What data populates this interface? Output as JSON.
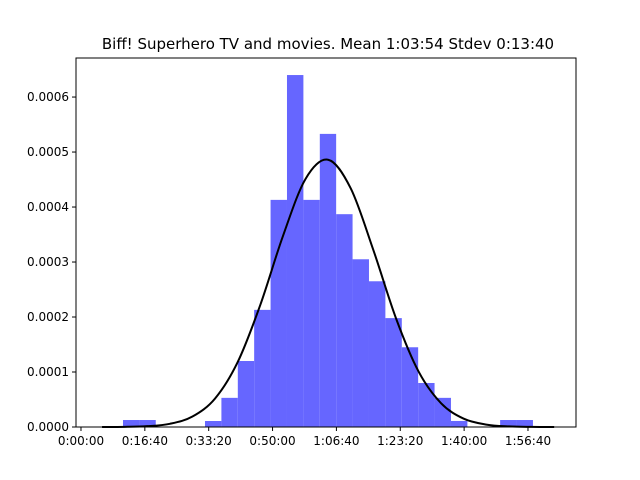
{
  "chart_data": {
    "type": "histogram",
    "title": "Biff! Superhero TV and movies. Mean 1:03:54 Stdev 0:13:40",
    "bins": [
      658,
      915,
      1171,
      1428,
      1685,
      1942,
      2199,
      2456,
      2712,
      2969,
      3226,
      3483,
      3740,
      3996,
      4253,
      4510,
      4767,
      5024,
      5280,
      5537,
      5794,
      6051,
      6308,
      6564,
      6821,
      7078
    ],
    "values": [
      1.27e-05,
      1.27e-05,
      0,
      0,
      0,
      1.09e-05,
      5.3e-05,
      0.00012,
      0.000213,
      0.000413,
      0.00064,
      0.000413,
      0.000533,
      0.000387,
      0.000305,
      0.000265,
      0.000198,
      0.000145,
      8e-05,
      5.3e-05,
      1.1e-05,
      0,
      0,
      1.27e-05,
      1.27e-05
    ],
    "color": "#6666ff",
    "curve": {
      "color": "#000000",
      "x": [
        330,
        684,
        1038,
        1392,
        1746,
        2100,
        2454,
        2808,
        3162,
        3516,
        3870,
        4224,
        4578,
        4932,
        5286,
        5640,
        5994,
        6348,
        6702,
        7056,
        7410
      ],
      "y": [
        5e-08,
        3e-07,
        1.5e-06,
        5.8e-06,
        1.9e-05,
        5.19e-05,
        0.000118,
        0.000222,
        0.000347,
        0.000451,
        0.000486,
        0.000434,
        0.000322,
        0.000198,
        0.000101,
        4.31e-05,
        1.51e-05,
        4.4e-06,
        1.07e-06,
        2.2e-07,
        4e-08
      ]
    },
    "xlim": [
      -78,
      7752
    ],
    "ylim": [
      0,
      0.000671
    ],
    "xticks": [
      {
        "value": 0,
        "label": "0:00:00"
      },
      {
        "value": 1000,
        "label": "0:16:40"
      },
      {
        "value": 2000,
        "label": "0:33:20"
      },
      {
        "value": 3000,
        "label": "0:50:00"
      },
      {
        "value": 4000,
        "label": "1:06:40"
      },
      {
        "value": 5000,
        "label": "1:23:20"
      },
      {
        "value": 6000,
        "label": "1:40:00"
      },
      {
        "value": 7000,
        "label": "1:56:40"
      }
    ],
    "yticks": [
      {
        "value": 0,
        "label": "0.0000"
      },
      {
        "value": 0.0001,
        "label": "0.0001"
      },
      {
        "value": 0.0002,
        "label": "0.0002"
      },
      {
        "value": 0.0003,
        "label": "0.0003"
      },
      {
        "value": 0.0004,
        "label": "0.0004"
      },
      {
        "value": 0.0005,
        "label": "0.0005"
      },
      {
        "value": 0.0006,
        "label": "0.0006"
      }
    ]
  }
}
